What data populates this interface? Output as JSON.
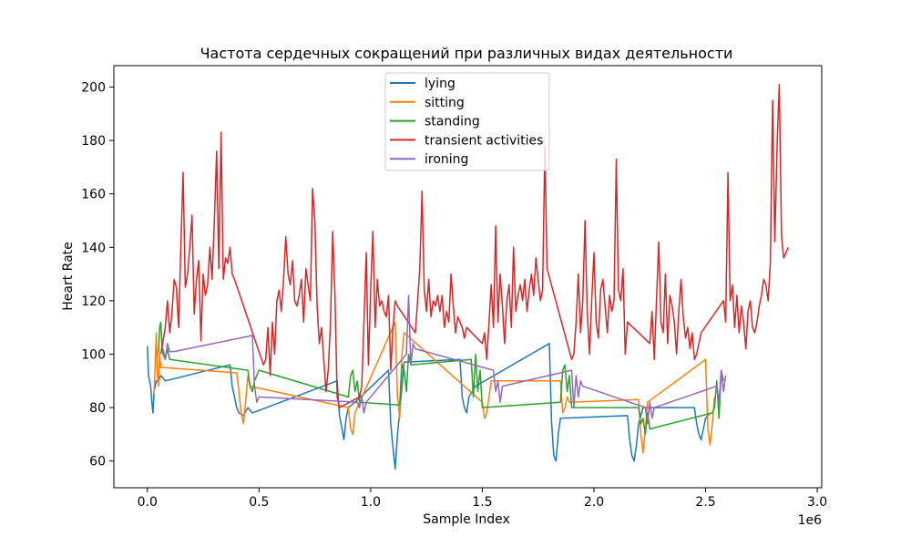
{
  "chart_data": {
    "type": "line",
    "title": "Частота сердечных сокращений при различных видах деятельности",
    "xlabel": "Sample Index",
    "ylabel": "Heart Rate",
    "x_offset_label": "1e6",
    "x_tick_labels": [
      "0.0",
      "0.5",
      "1.0",
      "1.5",
      "2.0",
      "2.5",
      "3.0"
    ],
    "y_tick_labels": [
      "60",
      "80",
      "100",
      "120",
      "140",
      "160",
      "180",
      "200"
    ],
    "xlim": [
      -0.15,
      3.02
    ],
    "ylim": [
      50,
      208
    ],
    "legend_position": "top-center",
    "grid": false,
    "series": [
      {
        "name": "lying",
        "color": "#1f77b4",
        "x": [
          0.0,
          0.005,
          0.015,
          0.02,
          0.025,
          0.03,
          0.04,
          0.05,
          0.06,
          0.08,
          0.37,
          0.38,
          0.39,
          0.4,
          0.41,
          0.43,
          0.45,
          0.47,
          0.85,
          0.86,
          0.87,
          0.88,
          0.89,
          0.9,
          0.93,
          1.08,
          1.09,
          1.1,
          1.11,
          1.12,
          1.13,
          1.15,
          1.4,
          1.41,
          1.42,
          1.43,
          1.44,
          1.47,
          1.8,
          1.81,
          1.82,
          1.83,
          1.84,
          1.85,
          2.15,
          2.16,
          2.17,
          2.18,
          2.19,
          2.2,
          2.22,
          2.45,
          2.46,
          2.47,
          2.48,
          2.49,
          2.5,
          2.52
        ],
        "y": [
          103,
          92,
          88,
          82,
          78,
          86,
          90,
          90,
          92,
          90,
          96,
          88,
          84,
          80,
          78,
          77,
          80,
          78,
          90,
          77,
          73,
          68,
          76,
          80,
          82,
          94,
          74,
          65,
          57,
          70,
          78,
          97,
          98,
          84,
          80,
          78,
          84,
          88,
          104,
          75,
          62,
          60,
          70,
          76,
          77,
          68,
          62,
          60,
          66,
          74,
          80,
          80,
          74,
          70,
          68,
          72,
          76,
          78
        ]
      },
      {
        "name": "sitting",
        "color": "#ff7f0e",
        "x": [
          0.03,
          0.035,
          0.04,
          0.045,
          0.05,
          0.055,
          0.06,
          0.07,
          0.4,
          0.41,
          0.42,
          0.43,
          0.44,
          0.45,
          0.46,
          0.9,
          0.91,
          0.92,
          0.93,
          0.94,
          1.11,
          1.12,
          1.13,
          1.14,
          1.15,
          1.5,
          1.51,
          1.52,
          1.53,
          1.54,
          1.85,
          1.86,
          1.87,
          1.88,
          1.89,
          2.2,
          2.21,
          2.22,
          2.23,
          2.24,
          2.5,
          2.51,
          2.52,
          2.53,
          2.54
        ],
        "y": [
          85,
          96,
          108,
          92,
          88,
          100,
          95,
          95,
          93,
          86,
          78,
          74,
          82,
          92,
          88,
          80,
          72,
          70,
          78,
          80,
          112,
          84,
          76,
          100,
          108,
          82,
          76,
          78,
          84,
          90,
          90,
          78,
          80,
          84,
          82,
          83,
          70,
          63,
          72,
          82,
          98,
          72,
          66,
          74,
          84
        ]
      },
      {
        "name": "standing",
        "color": "#2ca02c",
        "x": [
          0.05,
          0.055,
          0.06,
          0.065,
          0.07,
          0.08,
          0.09,
          0.1,
          0.45,
          0.46,
          0.47,
          0.48,
          0.49,
          0.5,
          0.9,
          0.91,
          0.92,
          0.93,
          0.94,
          0.95,
          1.13,
          1.14,
          1.15,
          1.16,
          1.17,
          1.18,
          1.45,
          1.46,
          1.47,
          1.48,
          1.49,
          1.5,
          1.85,
          1.86,
          1.87,
          1.88,
          1.89,
          1.9,
          2.2,
          2.21,
          2.22,
          2.23,
          2.24,
          2.25,
          2.53,
          2.54,
          2.55,
          2.56,
          2.57,
          2.58
        ],
        "y": [
          100,
          110,
          112,
          104,
          100,
          98,
          102,
          98,
          94,
          88,
          86,
          90,
          92,
          94,
          84,
          92,
          94,
          86,
          90,
          82,
          81,
          96,
          94,
          86,
          100,
          96,
          98,
          84,
          100,
          86,
          94,
          80,
          82,
          94,
          96,
          86,
          92,
          80,
          80,
          74,
          76,
          70,
          78,
          72,
          78,
          80,
          90,
          76,
          94,
          90
        ]
      },
      {
        "name": "transient activities",
        "color": "#d62728",
        "x": [
          0.06,
          0.08,
          0.09,
          0.1,
          0.11,
          0.12,
          0.13,
          0.14,
          0.15,
          0.16,
          0.17,
          0.18,
          0.19,
          0.2,
          0.21,
          0.22,
          0.23,
          0.24,
          0.25,
          0.26,
          0.27,
          0.28,
          0.29,
          0.3,
          0.31,
          0.32,
          0.33,
          0.34,
          0.35,
          0.36,
          0.37,
          0.38,
          0.39,
          0.52,
          0.53,
          0.54,
          0.55,
          0.56,
          0.57,
          0.58,
          0.59,
          0.6,
          0.61,
          0.62,
          0.63,
          0.64,
          0.65,
          0.66,
          0.67,
          0.68,
          0.69,
          0.7,
          0.71,
          0.72,
          0.73,
          0.74,
          0.75,
          0.76,
          0.77,
          0.78,
          0.79,
          0.8,
          0.81,
          0.82,
          0.83,
          0.84,
          0.85,
          0.86,
          0.95,
          0.96,
          0.97,
          0.98,
          0.99,
          1.0,
          1.01,
          1.02,
          1.03,
          1.04,
          1.05,
          1.06,
          1.07,
          1.08,
          1.09,
          1.1,
          1.11,
          1.12,
          1.2,
          1.21,
          1.22,
          1.23,
          1.24,
          1.25,
          1.26,
          1.27,
          1.28,
          1.29,
          1.3,
          1.31,
          1.32,
          1.33,
          1.34,
          1.35,
          1.36,
          1.37,
          1.38,
          1.39,
          1.4,
          1.41,
          1.42,
          1.43,
          1.5,
          1.51,
          1.52,
          1.53,
          1.54,
          1.55,
          1.56,
          1.57,
          1.58,
          1.59,
          1.6,
          1.61,
          1.62,
          1.63,
          1.64,
          1.65,
          1.66,
          1.67,
          1.68,
          1.69,
          1.7,
          1.71,
          1.72,
          1.73,
          1.74,
          1.75,
          1.76,
          1.77,
          1.78,
          1.79,
          1.9,
          1.91,
          1.92,
          1.93,
          1.94,
          1.95,
          1.96,
          1.97,
          1.98,
          1.99,
          2.0,
          2.01,
          2.02,
          2.03,
          2.04,
          2.05,
          2.06,
          2.07,
          2.08,
          2.09,
          2.1,
          2.11,
          2.12,
          2.13,
          2.14,
          2.15,
          2.25,
          2.26,
          2.27,
          2.28,
          2.29,
          2.3,
          2.31,
          2.32,
          2.33,
          2.34,
          2.35,
          2.36,
          2.37,
          2.38,
          2.39,
          2.4,
          2.41,
          2.42,
          2.43,
          2.44,
          2.45,
          2.46,
          2.47,
          2.48,
          2.58,
          2.59,
          2.6,
          2.61,
          2.62,
          2.63,
          2.64,
          2.65,
          2.66,
          2.67,
          2.68,
          2.69,
          2.7,
          2.71,
          2.72,
          2.73,
          2.74,
          2.75,
          2.76,
          2.77,
          2.78,
          2.79,
          2.8,
          2.81,
          2.82,
          2.83,
          2.84,
          2.85,
          2.86,
          2.87
        ],
        "y": [
          100,
          110,
          120,
          108,
          115,
          128,
          125,
          110,
          140,
          168,
          125,
          130,
          140,
          152,
          115,
          128,
          135,
          105,
          130,
          122,
          126,
          140,
          128,
          150,
          176,
          132,
          183,
          128,
          136,
          134,
          140,
          130,
          128,
          96,
          98,
          110,
          92,
          112,
          100,
          120,
          124,
          116,
          128,
          144,
          130,
          126,
          135,
          120,
          118,
          122,
          128,
          112,
          132,
          126,
          120,
          162,
          150,
          118,
          104,
          110,
          98,
          86,
          94,
          112,
          146,
          122,
          84,
          80,
          84,
          88,
          112,
          138,
          96,
          124,
          146,
          110,
          128,
          118,
          120,
          116,
          114,
          122,
          94,
          110,
          120,
          118,
          108,
          120,
          132,
          161,
          124,
          116,
          128,
          114,
          120,
          118,
          122,
          116,
          122,
          110,
          116,
          112,
          130,
          118,
          108,
          114,
          112,
          110,
          106,
          110,
          104,
          108,
          98,
          112,
          126,
          110,
          148,
          112,
          130,
          118,
          104,
          120,
          126,
          110,
          140,
          116,
          122,
          126,
          120,
          128,
          116,
          124,
          130,
          122,
          136,
          128,
          120,
          124,
          178,
          132,
          98,
          100,
          112,
          130,
          108,
          120,
          150,
          116,
          100,
          120,
          138,
          112,
          106,
          124,
          128,
          118,
          108,
          122,
          116,
          120,
          173,
          124,
          120,
          132,
          100,
          112,
          104,
          116,
          98,
          120,
          142,
          112,
          108,
          130,
          104,
          122,
          118,
          112,
          100,
          116,
          128,
          114,
          106,
          110,
          102,
          108,
          98,
          100,
          104,
          108,
          120,
          112,
          168,
          120,
          126,
          110,
          122,
          108,
          118,
          112,
          102,
          116,
          120,
          110,
          108,
          112,
          118,
          122,
          128,
          126,
          120,
          134,
          195,
          142,
          178,
          201,
          144,
          136,
          138,
          140
        ]
      },
      {
        "name": "ironing",
        "color": "#9467bd",
        "x": [
          0.07,
          0.08,
          0.09,
          0.1,
          0.11,
          0.12,
          0.47,
          0.48,
          0.49,
          0.5,
          0.94,
          0.95,
          0.96,
          0.97,
          0.98,
          1.16,
          1.17,
          1.18,
          1.19,
          1.2,
          1.55,
          1.56,
          1.57,
          1.58,
          1.59,
          1.9,
          1.91,
          1.92,
          1.93,
          1.94,
          1.95,
          2.23,
          2.24,
          2.25,
          2.26,
          2.27,
          2.55,
          2.56,
          2.57,
          2.58,
          2.59
        ],
        "y": [
          102,
          98,
          104,
          101,
          101,
          101,
          107,
          88,
          82,
          84,
          82,
          80,
          84,
          78,
          82,
          100,
          122,
          96,
          104,
          102,
          94,
          86,
          90,
          82,
          88,
          94,
          80,
          92,
          84,
          90,
          88,
          80,
          74,
          82,
          76,
          80,
          88,
          82,
          94,
          86,
          92
        ]
      }
    ]
  }
}
